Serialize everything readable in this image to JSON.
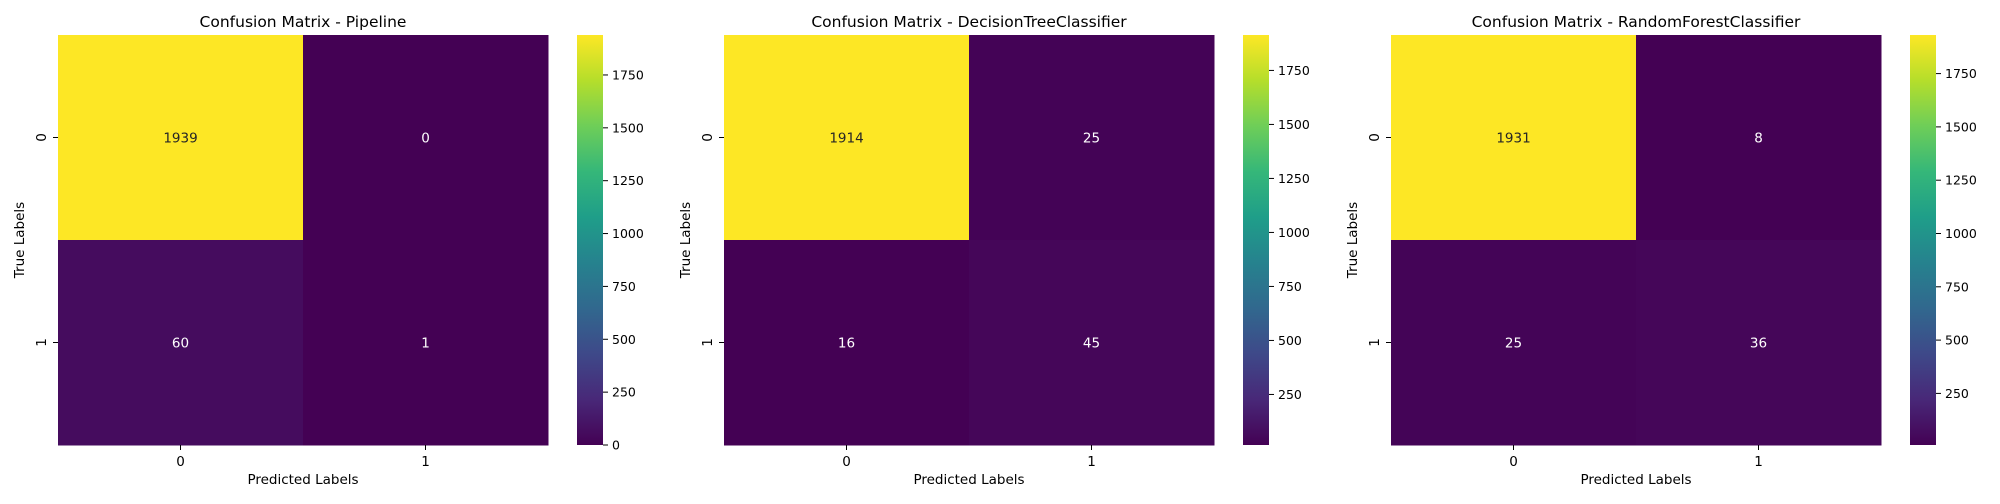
{
  "colorscale": {
    "name": "viridis",
    "stops": [
      "#440154",
      "#482878",
      "#3e4989",
      "#31688e",
      "#26828e",
      "#1f9e89",
      "#35b779",
      "#6ece58",
      "#b5de2b",
      "#fde725"
    ]
  },
  "chart_data": [
    {
      "type": "heatmap",
      "title": "Confusion Matrix - Pipeline",
      "xlabel": "Predicted Labels",
      "ylabel": "True Labels",
      "x_categories": [
        "0",
        "1"
      ],
      "y_categories": [
        "0",
        "1"
      ],
      "values": [
        [
          1939,
          0
        ],
        [
          60,
          1
        ]
      ],
      "colorbar": {
        "vmin": 0,
        "vmax": 1939,
        "ticks": [
          0,
          250,
          500,
          750,
          1000,
          1250,
          1500,
          1750
        ]
      }
    },
    {
      "type": "heatmap",
      "title": "Confusion Matrix - DecisionTreeClassifier",
      "xlabel": "Predicted Labels",
      "ylabel": "True Labels",
      "x_categories": [
        "0",
        "1"
      ],
      "y_categories": [
        "0",
        "1"
      ],
      "values": [
        [
          1914,
          25
        ],
        [
          16,
          45
        ]
      ],
      "colorbar": {
        "vmin": 16,
        "vmax": 1914,
        "ticks": [
          250,
          500,
          750,
          1000,
          1250,
          1500,
          1750
        ]
      }
    },
    {
      "type": "heatmap",
      "title": "Confusion Matrix - RandomForestClassifier",
      "xlabel": "Predicted Labels",
      "ylabel": "True Labels",
      "x_categories": [
        "0",
        "1"
      ],
      "y_categories": [
        "0",
        "1"
      ],
      "values": [
        [
          1931,
          8
        ],
        [
          25,
          36
        ]
      ],
      "colorbar": {
        "vmin": 8,
        "vmax": 1931,
        "ticks": [
          250,
          500,
          750,
          1000,
          1250,
          1500,
          1750
        ]
      }
    }
  ]
}
